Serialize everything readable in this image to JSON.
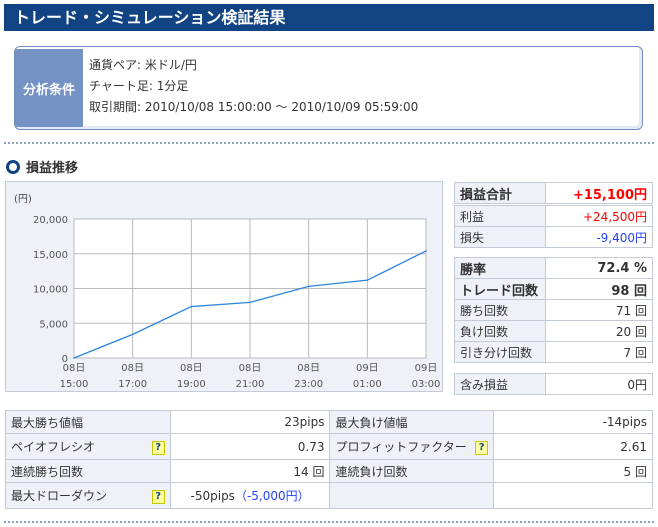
{
  "title": "トレード・シミュレーション検証結果",
  "conditions": {
    "label": "分析条件",
    "pair": "通貨ペア: 米ドル/円",
    "timeframe": "チャート足: 1分足",
    "period": "取引期間: 2010/10/08 15:00:00 〜 2010/10/09 05:59:00"
  },
  "section_title": "損益推移",
  "chart_data": {
    "type": "line",
    "ylabel": "(円)",
    "ylim": [
      0,
      20000
    ],
    "yticks": [
      "0",
      "5,000",
      "10,000",
      "15,000",
      "20,000"
    ],
    "xticks": [
      [
        "08日",
        "15:00"
      ],
      [
        "08日",
        "17:00"
      ],
      [
        "08日",
        "19:00"
      ],
      [
        "08日",
        "21:00"
      ],
      [
        "08日",
        "23:00"
      ],
      [
        "09日",
        "01:00"
      ],
      [
        "09日",
        "03:00"
      ]
    ],
    "values": [
      0,
      3400,
      7400,
      8000,
      10300,
      11200,
      15400
    ],
    "grid": true,
    "color": "#2e86de"
  },
  "summary": {
    "total": {
      "label": "損益合計",
      "value": "+15,100円"
    },
    "profit": {
      "label": "利益",
      "value": "+24,500円"
    },
    "loss": {
      "label": "損失",
      "value": "-9,400円"
    },
    "winrate": {
      "label": "勝率",
      "value": "72.4 %"
    },
    "trades": {
      "label": "トレード回数",
      "value": "98 回"
    },
    "wins": {
      "label": "勝ち回数",
      "value": "71 回"
    },
    "losses": {
      "label": "負け回数",
      "value": "20 回"
    },
    "draws": {
      "label": "引き分け回数",
      "value": "7 回"
    },
    "unrealized": {
      "label": "含み損益",
      "value": "0円"
    }
  },
  "stats": {
    "max_win": {
      "label": "最大勝ち値幅",
      "value": "23pips"
    },
    "max_loss": {
      "label": "最大負け値幅",
      "value": "-14pips"
    },
    "payoff": {
      "label": "ペイオフレシオ",
      "value": "0.73"
    },
    "pf": {
      "label": "プロフィットファクター",
      "value": "2.61"
    },
    "consec_win": {
      "label": "連続勝ち回数",
      "value": "14 回"
    },
    "consec_loss": {
      "label": "連続負け回数",
      "value": "5 回"
    },
    "dd": {
      "label": "最大ドローダウン",
      "pips": "-50pips",
      "open": "（",
      "yen": "-5,000円",
      "close": "）"
    },
    "help": "?"
  },
  "colors": {
    "header": "#124483",
    "profit": "#ff0000",
    "loss": "#2443ff"
  }
}
